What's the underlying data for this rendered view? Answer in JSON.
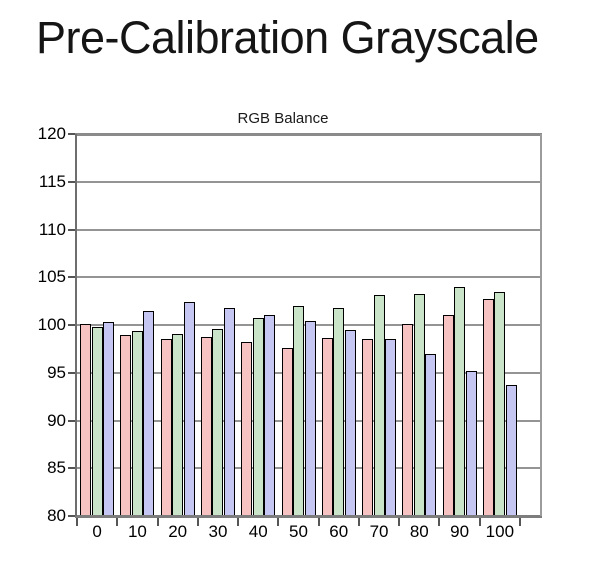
{
  "page": {
    "title": "Pre-Calibration Grayscale"
  },
  "chart": {
    "subtitle": "RGB Balance"
  },
  "chart_data": {
    "type": "bar",
    "title": "RGB Balance",
    "xlabel": "",
    "ylabel": "",
    "categories": [
      "0",
      "10",
      "20",
      "30",
      "40",
      "50",
      "60",
      "70",
      "80",
      "90",
      "100"
    ],
    "series": [
      {
        "name": "Red",
        "color": "#F6C2C2",
        "values": [
          100.1,
          99.0,
          98.5,
          98.7,
          98.2,
          97.6,
          98.6,
          98.5,
          100.1,
          101.0,
          102.7
        ]
      },
      {
        "name": "Green",
        "color": "#C9E4C9",
        "values": [
          99.8,
          99.4,
          99.1,
          99.6,
          100.7,
          102.0,
          101.8,
          103.1,
          103.2,
          104.0,
          103.5
        ]
      },
      {
        "name": "Blue",
        "color": "#C6C6F3",
        "values": [
          100.3,
          101.5,
          102.4,
          101.8,
          101.0,
          100.4,
          99.5,
          98.5,
          97.0,
          95.2,
          93.7
        ]
      }
    ],
    "ylim": [
      80,
      120
    ],
    "ytick_step": 5,
    "grid": true,
    "legend_position": "none",
    "colors": {
      "gridline": "#949494",
      "top_border": "#8a8a8a",
      "bottom_axis": "#7d7d7d",
      "left_axis": "#6e6e6e",
      "right_border": "#9c9c9c",
      "tick": "#555555",
      "bar_border": "#000000"
    }
  }
}
